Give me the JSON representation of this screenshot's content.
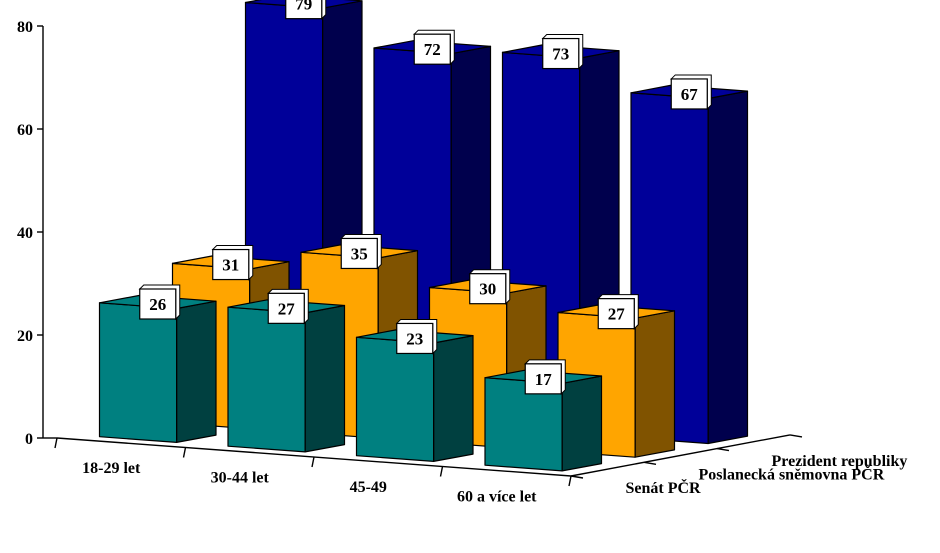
{
  "chart_data": {
    "type": "bar",
    "variant": "3d-clustered-depth",
    "categories": [
      "18-29 let",
      "30-44 let",
      "45-49",
      "60 a více let"
    ],
    "series": [
      {
        "name": "Senát PČR",
        "values": [
          26,
          27,
          23,
          17
        ],
        "color": "#008080"
      },
      {
        "name": "Poslanecká sněmovna PČR",
        "values": [
          31,
          35,
          30,
          27
        ],
        "color": "#FFA500"
      },
      {
        "name": "Prezident republiky",
        "values": [
          79,
          72,
          73,
          67
        ],
        "color": "#000099"
      }
    ],
    "yticks": [
      "0",
      "20",
      "40",
      "60",
      "80"
    ],
    "ylim": [
      0,
      80
    ],
    "title": "",
    "xlabel": "",
    "ylabel": "",
    "data_labels": true,
    "grid": false
  }
}
